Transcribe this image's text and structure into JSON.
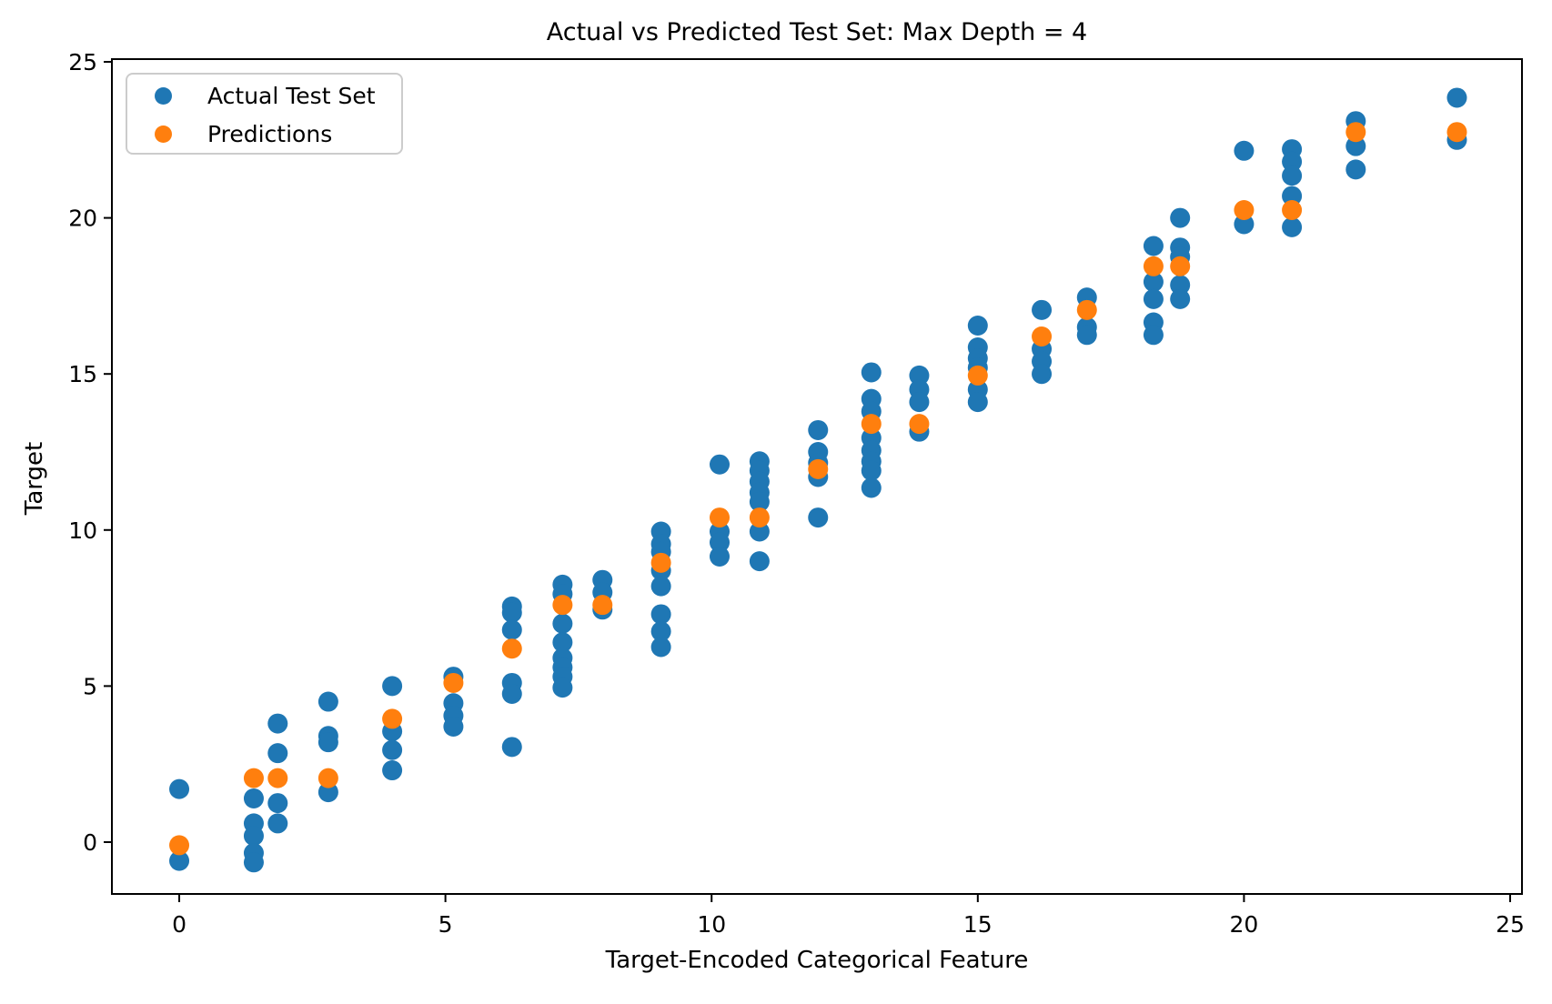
{
  "figure": {
    "background": "#ffffff",
    "axis_color": "#000000"
  },
  "legend": {
    "position": "upper left",
    "items": [
      {
        "label": "Actual Test Set",
        "color": "#1f77b4",
        "marker": "circle"
      },
      {
        "label": "Predictions",
        "color": "#ff7f0e",
        "marker": "circle"
      }
    ]
  },
  "chart_data": {
    "type": "scatter",
    "title": "Actual vs Predicted Test Set: Max Depth = 4",
    "xlabel": "Target-Encoded Categorical Feature",
    "ylabel": "Target",
    "xlim": [
      -1.265,
      25.222
    ],
    "ylim": [
      -1.661,
      25.087
    ],
    "xticks": [
      0,
      5,
      10,
      15,
      20,
      25
    ],
    "yticks": [
      0,
      5,
      10,
      15,
      20,
      25
    ],
    "grid": false,
    "legend_position": "upper left",
    "marker_radius": 11,
    "series": [
      {
        "name": "Actual Test Set",
        "color": "#1f77b4",
        "points": [
          [
            0.0,
            1.7
          ],
          [
            0.0,
            -0.6
          ],
          [
            1.4,
            1.4
          ],
          [
            1.4,
            0.6
          ],
          [
            1.4,
            0.2
          ],
          [
            1.4,
            -0.35
          ],
          [
            1.4,
            -0.65
          ],
          [
            1.85,
            3.8
          ],
          [
            1.85,
            2.85
          ],
          [
            1.85,
            1.25
          ],
          [
            1.85,
            0.6
          ],
          [
            2.8,
            4.5
          ],
          [
            2.8,
            3.4
          ],
          [
            2.8,
            3.2
          ],
          [
            2.8,
            1.6
          ],
          [
            4.0,
            5.0
          ],
          [
            4.0,
            3.55
          ],
          [
            4.0,
            2.95
          ],
          [
            4.0,
            2.3
          ],
          [
            5.15,
            5.3
          ],
          [
            5.15,
            4.45
          ],
          [
            5.15,
            4.05
          ],
          [
            5.15,
            3.7
          ],
          [
            6.25,
            7.55
          ],
          [
            6.25,
            7.35
          ],
          [
            6.25,
            6.8
          ],
          [
            6.25,
            5.1
          ],
          [
            6.25,
            4.75
          ],
          [
            6.25,
            3.05
          ],
          [
            7.2,
            8.25
          ],
          [
            7.2,
            7.95
          ],
          [
            7.2,
            7.0
          ],
          [
            7.2,
            6.4
          ],
          [
            7.2,
            5.9
          ],
          [
            7.2,
            5.6
          ],
          [
            7.2,
            5.3
          ],
          [
            7.2,
            4.95
          ],
          [
            7.95,
            8.4
          ],
          [
            7.95,
            8.0
          ],
          [
            7.95,
            7.45
          ],
          [
            9.05,
            9.95
          ],
          [
            9.05,
            9.55
          ],
          [
            9.05,
            9.3
          ],
          [
            9.05,
            8.7
          ],
          [
            9.05,
            8.2
          ],
          [
            9.05,
            7.3
          ],
          [
            9.05,
            6.75
          ],
          [
            9.05,
            6.25
          ],
          [
            10.15,
            12.1
          ],
          [
            10.15,
            9.95
          ],
          [
            10.15,
            9.6
          ],
          [
            10.15,
            9.15
          ],
          [
            10.9,
            12.2
          ],
          [
            10.9,
            11.9
          ],
          [
            10.9,
            11.55
          ],
          [
            10.9,
            11.2
          ],
          [
            10.9,
            10.9
          ],
          [
            10.9,
            9.95
          ],
          [
            10.9,
            9.0
          ],
          [
            12.0,
            13.2
          ],
          [
            12.0,
            12.5
          ],
          [
            12.0,
            12.15
          ],
          [
            12.0,
            11.7
          ],
          [
            12.0,
            10.4
          ],
          [
            13.0,
            15.05
          ],
          [
            13.0,
            14.2
          ],
          [
            13.0,
            13.8
          ],
          [
            13.0,
            12.95
          ],
          [
            13.0,
            12.55
          ],
          [
            13.0,
            12.2
          ],
          [
            13.0,
            11.9
          ],
          [
            13.0,
            11.35
          ],
          [
            13.9,
            14.95
          ],
          [
            13.9,
            14.5
          ],
          [
            13.9,
            14.1
          ],
          [
            13.9,
            13.15
          ],
          [
            15.0,
            16.55
          ],
          [
            15.0,
            15.85
          ],
          [
            15.0,
            15.5
          ],
          [
            15.0,
            15.2
          ],
          [
            15.0,
            14.5
          ],
          [
            15.0,
            14.1
          ],
          [
            16.2,
            17.05
          ],
          [
            16.2,
            15.8
          ],
          [
            16.2,
            15.4
          ],
          [
            16.2,
            15.0
          ],
          [
            17.05,
            17.45
          ],
          [
            17.05,
            16.5
          ],
          [
            17.05,
            16.25
          ],
          [
            18.3,
            19.1
          ],
          [
            18.3,
            17.95
          ],
          [
            18.3,
            17.4
          ],
          [
            18.3,
            16.65
          ],
          [
            18.3,
            16.25
          ],
          [
            18.8,
            20.0
          ],
          [
            18.8,
            19.05
          ],
          [
            18.8,
            18.75
          ],
          [
            18.8,
            17.85
          ],
          [
            18.8,
            17.4
          ],
          [
            20.0,
            22.15
          ],
          [
            20.0,
            19.8
          ],
          [
            20.9,
            22.2
          ],
          [
            20.9,
            21.8
          ],
          [
            20.9,
            21.35
          ],
          [
            20.9,
            20.7
          ],
          [
            20.9,
            19.7
          ],
          [
            22.1,
            23.1
          ],
          [
            22.1,
            22.3
          ],
          [
            22.1,
            21.55
          ],
          [
            24.0,
            23.85
          ],
          [
            24.0,
            22.5
          ]
        ]
      },
      {
        "name": "Predictions",
        "color": "#ff7f0e",
        "points": [
          [
            0.0,
            -0.1
          ],
          [
            1.4,
            2.05
          ],
          [
            1.85,
            2.05
          ],
          [
            2.8,
            2.05
          ],
          [
            4.0,
            3.95
          ],
          [
            5.15,
            5.1
          ],
          [
            6.25,
            6.2
          ],
          [
            7.2,
            7.6
          ],
          [
            7.95,
            7.6
          ],
          [
            9.05,
            8.95
          ],
          [
            10.15,
            10.4
          ],
          [
            10.9,
            10.4
          ],
          [
            12.0,
            11.95
          ],
          [
            13.0,
            13.4
          ],
          [
            13.9,
            13.4
          ],
          [
            15.0,
            14.95
          ],
          [
            16.2,
            16.2
          ],
          [
            17.05,
            17.05
          ],
          [
            18.3,
            18.45
          ],
          [
            18.8,
            18.45
          ],
          [
            20.0,
            20.25
          ],
          [
            20.9,
            20.25
          ],
          [
            22.1,
            22.75
          ],
          [
            24.0,
            22.75
          ]
        ]
      }
    ]
  }
}
